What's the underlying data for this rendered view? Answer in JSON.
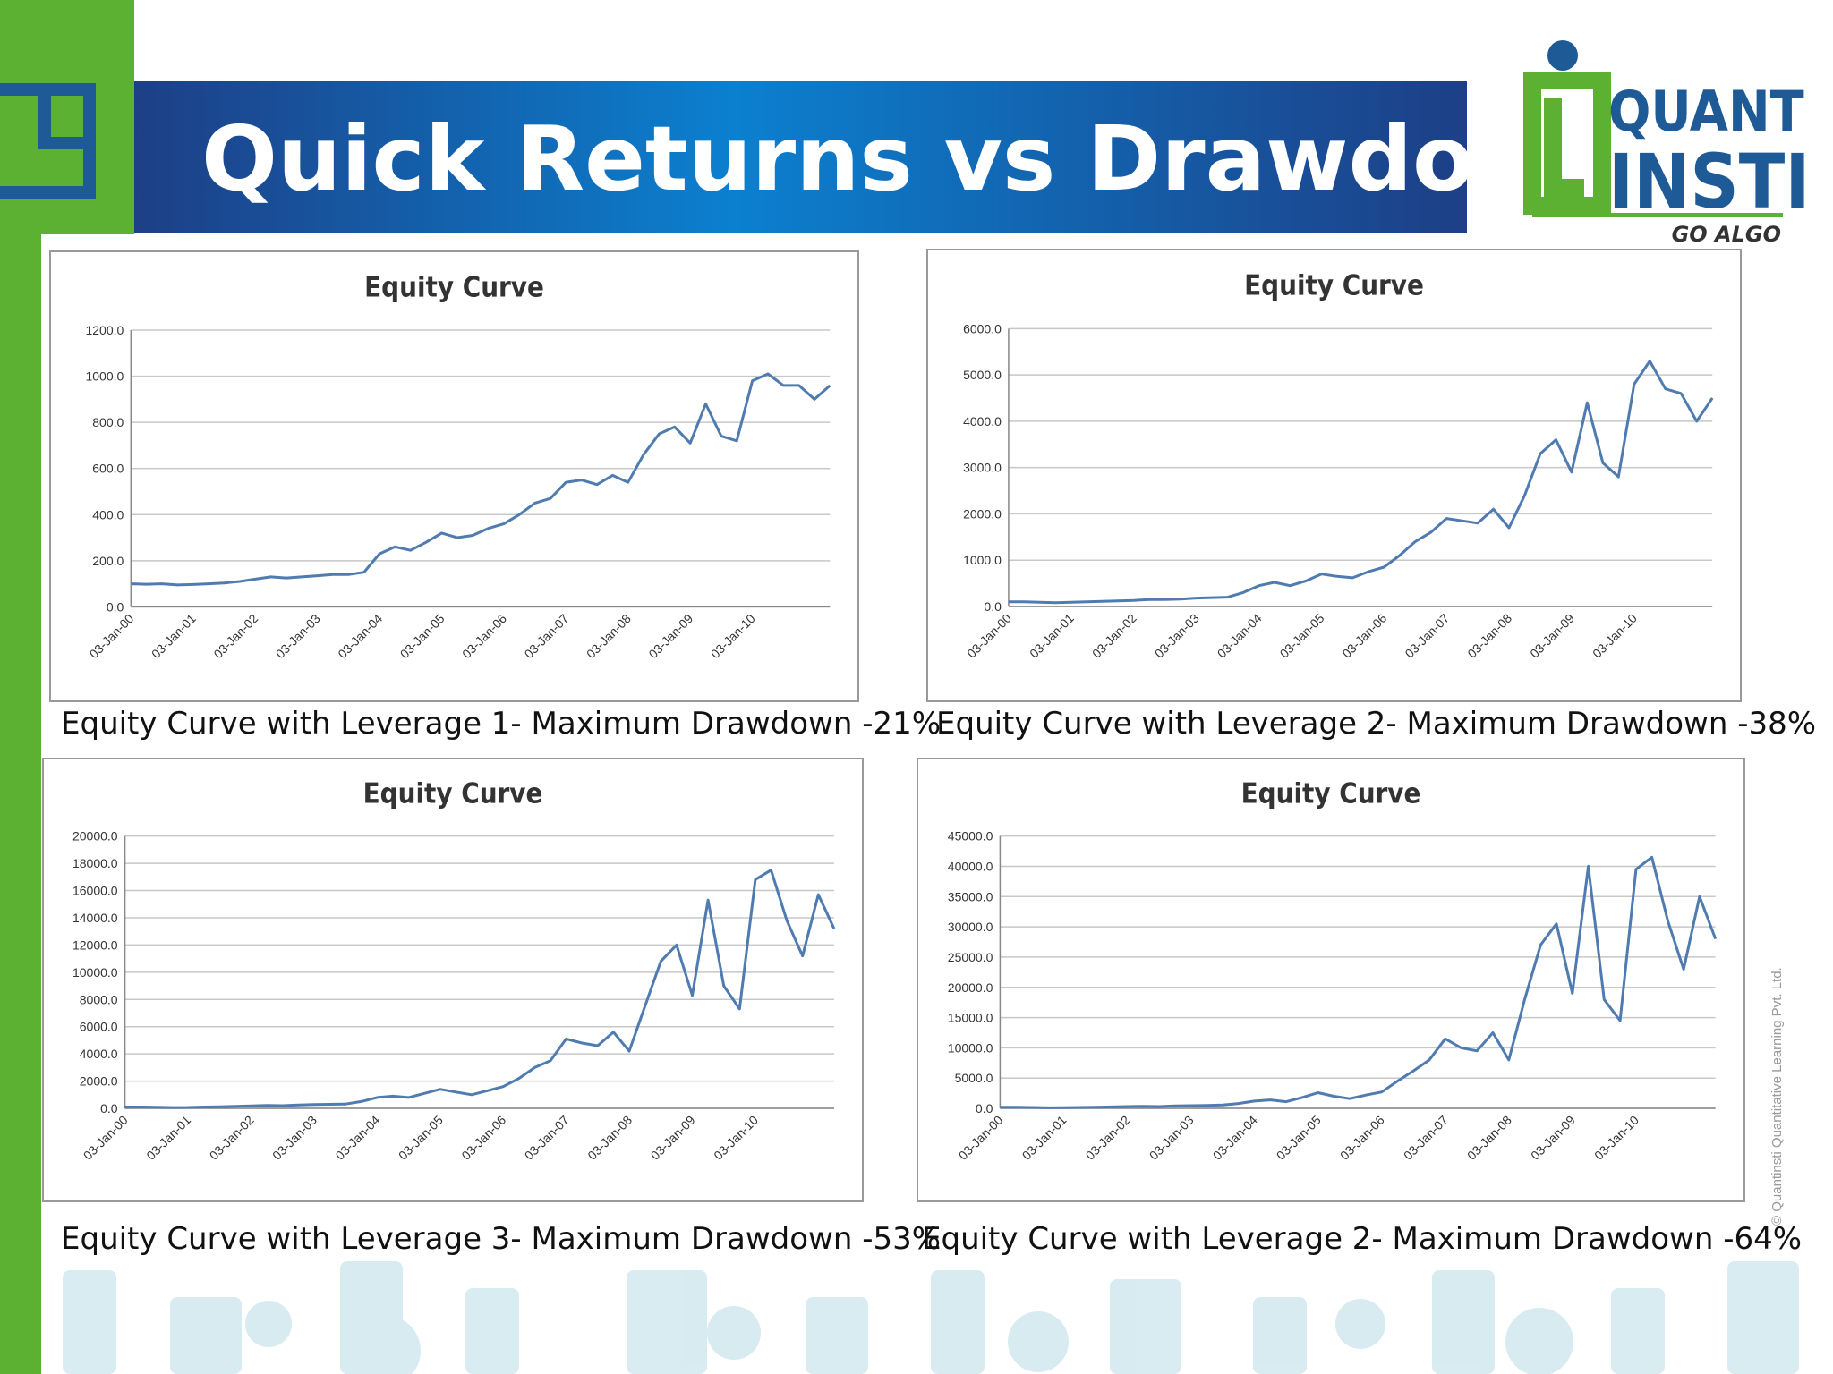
{
  "title": "Quick Returns vs Drawdown",
  "logo": {
    "line1": "QUANT",
    "line2": "INSTI",
    "tagline": "GO ALGO"
  },
  "watermark": "© Quantinsti Quantitative Learning Pvt. Ltd.",
  "chart_data": [
    {
      "type": "line",
      "title": "Equity Curve",
      "caption": "Equity Curve with Leverage 1- Maximum Drawdown -21%",
      "color": "#4f7bb0",
      "categories": [
        "03-Jan-00",
        null,
        null,
        null,
        "03-Jan-01",
        null,
        null,
        null,
        "03-Jan-02",
        null,
        null,
        null,
        "03-Jan-03",
        null,
        null,
        null,
        "03-Jan-04",
        null,
        null,
        null,
        "03-Jan-05",
        null,
        null,
        null,
        "03-Jan-06",
        null,
        null,
        null,
        "03-Jan-07",
        null,
        null,
        null,
        "03-Jan-08",
        null,
        null,
        null,
        "03-Jan-09",
        null,
        null,
        null,
        "03-Jan-10",
        null,
        null,
        null,
        null,
        null
      ],
      "values": [
        100,
        98,
        100,
        95,
        97,
        100,
        103,
        110,
        120,
        130,
        125,
        130,
        135,
        140,
        140,
        150,
        230,
        260,
        245,
        280,
        320,
        300,
        310,
        340,
        360,
        400,
        450,
        470,
        540,
        550,
        530,
        570,
        540,
        660,
        750,
        780,
        710,
        880,
        740,
        720,
        980,
        1010,
        960,
        960,
        900,
        960
      ],
      "ylim": [
        0,
        1200
      ],
      "yticks": [
        {
          "value": 0,
          "label": "0.0"
        },
        {
          "value": 200,
          "label": "200.0"
        },
        {
          "value": 400,
          "label": "400.0"
        },
        {
          "value": 600,
          "label": "600.0"
        },
        {
          "value": 800,
          "label": "800.0"
        },
        {
          "value": 1000,
          "label": "1000.0"
        },
        {
          "value": 1200,
          "label": "1200.0"
        }
      ],
      "grid": true
    },
    {
      "type": "line",
      "title": "Equity Curve",
      "caption": "Equity Curve with Leverage 2- Maximum Drawdown -38%",
      "color": "#4f7bb0",
      "categories": [
        "03-Jan-00",
        null,
        null,
        null,
        "03-Jan-01",
        null,
        null,
        null,
        "03-Jan-02",
        null,
        null,
        null,
        "03-Jan-03",
        null,
        null,
        null,
        "03-Jan-04",
        null,
        null,
        null,
        "03-Jan-05",
        null,
        null,
        null,
        "03-Jan-06",
        null,
        null,
        null,
        "03-Jan-07",
        null,
        null,
        null,
        "03-Jan-08",
        null,
        null,
        null,
        "03-Jan-09",
        null,
        null,
        null,
        "03-Jan-10",
        null,
        null,
        null,
        null,
        null
      ],
      "values": [
        100,
        100,
        90,
        80,
        90,
        100,
        110,
        120,
        130,
        150,
        150,
        160,
        180,
        190,
        200,
        300,
        450,
        520,
        450,
        550,
        700,
        650,
        620,
        750,
        850,
        1100,
        1400,
        1600,
        1900,
        1850,
        1800,
        2100,
        1700,
        2400,
        3300,
        3600,
        2900,
        4400,
        3100,
        2800,
        4800,
        5300,
        4700,
        4600,
        4000,
        4500
      ],
      "ylim": [
        0,
        6000
      ],
      "yticks": [
        {
          "value": 0,
          "label": "0.0"
        },
        {
          "value": 1000,
          "label": "1000.0"
        },
        {
          "value": 2000,
          "label": "2000.0"
        },
        {
          "value": 3000,
          "label": "3000.0"
        },
        {
          "value": 4000,
          "label": "4000.0"
        },
        {
          "value": 5000,
          "label": "5000.0"
        },
        {
          "value": 6000,
          "label": "6000.0"
        }
      ],
      "grid": true
    },
    {
      "type": "line",
      "title": "Equity Curve",
      "caption": "Equity Curve with Leverage 3- Maximum Drawdown -53%",
      "color": "#4f7bb0",
      "categories": [
        "03-Jan-00",
        null,
        null,
        null,
        "03-Jan-01",
        null,
        null,
        null,
        "03-Jan-02",
        null,
        null,
        null,
        "03-Jan-03",
        null,
        null,
        null,
        "03-Jan-04",
        null,
        null,
        null,
        "03-Jan-05",
        null,
        null,
        null,
        "03-Jan-06",
        null,
        null,
        null,
        "03-Jan-07",
        null,
        null,
        null,
        "03-Jan-08",
        null,
        null,
        null,
        "03-Jan-09",
        null,
        null,
        null,
        "03-Jan-10",
        null,
        null,
        null,
        null,
        null
      ],
      "values": [
        100,
        100,
        80,
        60,
        70,
        100,
        120,
        150,
        180,
        220,
        200,
        250,
        280,
        300,
        320,
        500,
        800,
        900,
        800,
        1100,
        1400,
        1200,
        1000,
        1300,
        1600,
        2200,
        3000,
        3500,
        5100,
        4800,
        4600,
        5600,
        4200,
        7500,
        10800,
        12000,
        8300,
        15300,
        9000,
        7300,
        16800,
        17500,
        13800,
        11200,
        15700,
        13200
      ],
      "ylim": [
        0,
        20000
      ],
      "yticks": [
        {
          "value": 0,
          "label": "0.0"
        },
        {
          "value": 2000,
          "label": "2000.0"
        },
        {
          "value": 4000,
          "label": "4000.0"
        },
        {
          "value": 6000,
          "label": "6000.0"
        },
        {
          "value": 8000,
          "label": "8000.0"
        },
        {
          "value": 10000,
          "label": "10000.0"
        },
        {
          "value": 12000,
          "label": "12000.0"
        },
        {
          "value": 14000,
          "label": "14000.0"
        },
        {
          "value": 16000,
          "label": "16000.0"
        },
        {
          "value": 18000,
          "label": "18000.0"
        },
        {
          "value": 20000,
          "label": "20000.0"
        }
      ],
      "grid": true
    },
    {
      "type": "line",
      "title": "Equity Curve",
      "caption": "Equity Curve with Leverage 2- Maximum Drawdown -64%",
      "color": "#4f7bb0",
      "categories": [
        "03-Jan-00",
        null,
        null,
        null,
        "03-Jan-01",
        null,
        null,
        null,
        "03-Jan-02",
        null,
        null,
        null,
        "03-Jan-03",
        null,
        null,
        null,
        "03-Jan-04",
        null,
        null,
        null,
        "03-Jan-05",
        null,
        null,
        null,
        "03-Jan-06",
        null,
        null,
        null,
        "03-Jan-07",
        null,
        null,
        null,
        "03-Jan-08",
        null,
        null,
        null,
        "03-Jan-09",
        null,
        null,
        null,
        "03-Jan-10",
        null,
        null,
        null,
        null,
        null
      ],
      "values": [
        200,
        200,
        150,
        100,
        120,
        150,
        200,
        250,
        300,
        350,
        300,
        400,
        450,
        500,
        550,
        800,
        1200,
        1400,
        1100,
        1800,
        2600,
        2000,
        1600,
        2200,
        2700,
        4500,
        6200,
        8000,
        11500,
        10000,
        9500,
        12500,
        8000,
        18000,
        27000,
        30500,
        19000,
        40000,
        18000,
        14500,
        39500,
        41500,
        31000,
        23000,
        35000,
        28000
      ],
      "ylim": [
        0,
        45000
      ],
      "yticks": [
        {
          "value": 0,
          "label": "0.0"
        },
        {
          "value": 5000,
          "label": "5000.0"
        },
        {
          "value": 10000,
          "label": "10000.0"
        },
        {
          "value": 15000,
          "label": "15000.0"
        },
        {
          "value": 20000,
          "label": "20000.0"
        },
        {
          "value": 25000,
          "label": "25000.0"
        },
        {
          "value": 30000,
          "label": "30000.0"
        },
        {
          "value": 35000,
          "label": "35000.0"
        },
        {
          "value": 40000,
          "label": "40000.0"
        },
        {
          "value": 45000,
          "label": "45000.0"
        }
      ],
      "grid": true
    }
  ]
}
